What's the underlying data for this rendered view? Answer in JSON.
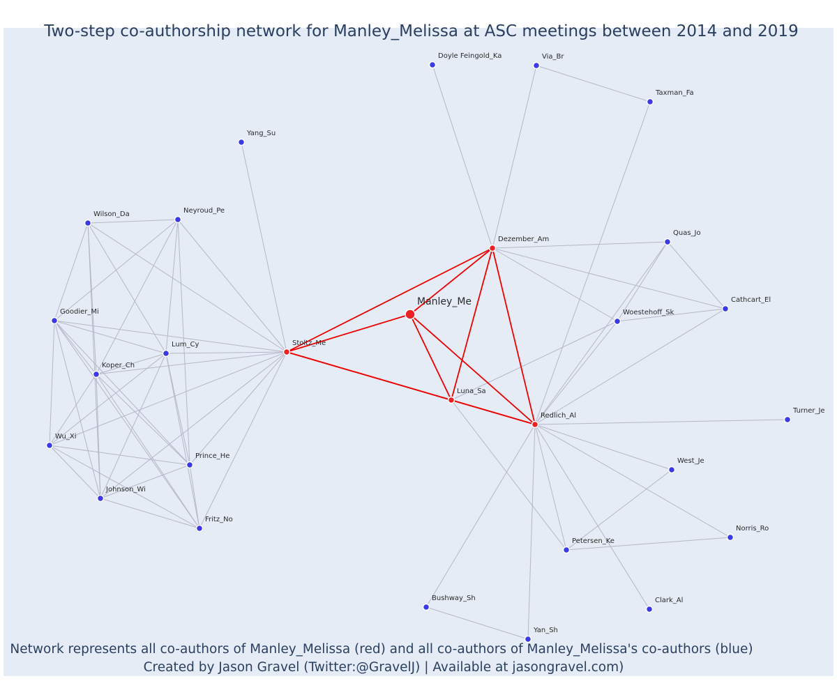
{
  "title": "Two-step co-authorship network for Manley_Melissa at ASC meetings between 2014 and 2019",
  "caption_line1": "Network represents all co-authors of Manley_Melissa (red) and all co-authors of Manley_Melissa's co-authors (blue)",
  "caption_line2": "Created by Jason Gravel (Twitter:@GravelJ) | Available at jasongravel.com)",
  "colors": {
    "background": "#e5ecf6",
    "text": "#2a3f5f",
    "red_node": "#ee2222",
    "blue_node": "#3a3ae6",
    "red_edge": "#ee0000",
    "grey_edge": "#b6b6c8"
  },
  "nodes": [
    {
      "id": "Manley_Me",
      "label": "Manley_Me",
      "group": "focal"
    },
    {
      "id": "Stoltz_Me",
      "label": "Stoltz_Me",
      "group": "red"
    },
    {
      "id": "Dezember_Am",
      "label": "Dezember_Am",
      "group": "red"
    },
    {
      "id": "Luna_Sa",
      "label": "Luna_Sa",
      "group": "red"
    },
    {
      "id": "Redlich_Al",
      "label": "Redlich_Al",
      "group": "red"
    },
    {
      "id": "Doyle Feingold_Ka",
      "label": "Doyle Feingold_Ka",
      "group": "blue"
    },
    {
      "id": "Via_Br",
      "label": "Via_Br",
      "group": "blue"
    },
    {
      "id": "Taxman_Fa",
      "label": "Taxman_Fa",
      "group": "blue"
    },
    {
      "id": "Yang_Su",
      "label": "Yang_Su",
      "group": "blue"
    },
    {
      "id": "Wilson_Da",
      "label": "Wilson_Da",
      "group": "blue"
    },
    {
      "id": "Neyroud_Pe",
      "label": "Neyroud_Pe",
      "group": "blue"
    },
    {
      "id": "Goodier_Mi",
      "label": "Goodier_Mi",
      "group": "blue"
    },
    {
      "id": "Lum_Cy",
      "label": "Lum_Cy",
      "group": "blue"
    },
    {
      "id": "Koper_Ch",
      "label": "Koper_Ch",
      "group": "blue"
    },
    {
      "id": "Wu_Xi",
      "label": "Wu_Xi",
      "group": "blue"
    },
    {
      "id": "Prince_He",
      "label": "Prince_He",
      "group": "blue"
    },
    {
      "id": "Johnson_Wi",
      "label": "Johnson_Wi",
      "group": "blue"
    },
    {
      "id": "Fritz_No",
      "label": "Fritz_No",
      "group": "blue"
    },
    {
      "id": "Quas_Jo",
      "label": "Quas_Jo",
      "group": "blue"
    },
    {
      "id": "Cathcart_El",
      "label": "Cathcart_El",
      "group": "blue"
    },
    {
      "id": "Woestehoff_Sk",
      "label": "Woestehoff_Sk",
      "group": "blue"
    },
    {
      "id": "Turner_Je",
      "label": "Turner_Je",
      "group": "blue"
    },
    {
      "id": "West_Je",
      "label": "West_Je",
      "group": "blue"
    },
    {
      "id": "Norris_Ro",
      "label": "Norris_Ro",
      "group": "blue"
    },
    {
      "id": "Petersen_Ke",
      "label": "Petersen_Ke",
      "group": "blue"
    },
    {
      "id": "Bushway_Sh",
      "label": "Bushway_Sh",
      "group": "blue"
    },
    {
      "id": "Yan_Sh",
      "label": "Yan_Sh",
      "group": "blue"
    },
    {
      "id": "Clark_Al",
      "label": "Clark_Al",
      "group": "blue"
    }
  ],
  "edges_red": [
    [
      "Manley_Me",
      "Stoltz_Me"
    ],
    [
      "Manley_Me",
      "Dezember_Am"
    ],
    [
      "Manley_Me",
      "Luna_Sa"
    ],
    [
      "Manley_Me",
      "Redlich_Al"
    ],
    [
      "Stoltz_Me",
      "Dezember_Am"
    ],
    [
      "Stoltz_Me",
      "Luna_Sa"
    ],
    [
      "Stoltz_Me",
      "Redlich_Al"
    ],
    [
      "Dezember_Am",
      "Luna_Sa"
    ],
    [
      "Dezember_Am",
      "Redlich_Al"
    ],
    [
      "Luna_Sa",
      "Redlich_Al"
    ]
  ],
  "edges_grey": [
    [
      "Yang_Su",
      "Stoltz_Me"
    ],
    [
      "Wilson_Da",
      "Stoltz_Me"
    ],
    [
      "Neyroud_Pe",
      "Stoltz_Me"
    ],
    [
      "Goodier_Mi",
      "Stoltz_Me"
    ],
    [
      "Lum_Cy",
      "Stoltz_Me"
    ],
    [
      "Koper_Ch",
      "Stoltz_Me"
    ],
    [
      "Wu_Xi",
      "Stoltz_Me"
    ],
    [
      "Prince_He",
      "Stoltz_Me"
    ],
    [
      "Johnson_Wi",
      "Stoltz_Me"
    ],
    [
      "Fritz_No",
      "Stoltz_Me"
    ],
    [
      "Wilson_Da",
      "Neyroud_Pe"
    ],
    [
      "Wilson_Da",
      "Goodier_Mi"
    ],
    [
      "Wilson_Da",
      "Lum_Cy"
    ],
    [
      "Wilson_Da",
      "Koper_Ch"
    ],
    [
      "Wilson_Da",
      "Johnson_Wi"
    ],
    [
      "Neyroud_Pe",
      "Goodier_Mi"
    ],
    [
      "Neyroud_Pe",
      "Lum_Cy"
    ],
    [
      "Neyroud_Pe",
      "Koper_Ch"
    ],
    [
      "Neyroud_Pe",
      "Prince_He"
    ],
    [
      "Goodier_Mi",
      "Lum_Cy"
    ],
    [
      "Goodier_Mi",
      "Koper_Ch"
    ],
    [
      "Goodier_Mi",
      "Wu_Xi"
    ],
    [
      "Goodier_Mi",
      "Prince_He"
    ],
    [
      "Goodier_Mi",
      "Johnson_Wi"
    ],
    [
      "Goodier_Mi",
      "Fritz_No"
    ],
    [
      "Lum_Cy",
      "Koper_Ch"
    ],
    [
      "Lum_Cy",
      "Wu_Xi"
    ],
    [
      "Lum_Cy",
      "Prince_He"
    ],
    [
      "Lum_Cy",
      "Johnson_Wi"
    ],
    [
      "Lum_Cy",
      "Fritz_No"
    ],
    [
      "Koper_Ch",
      "Wu_Xi"
    ],
    [
      "Koper_Ch",
      "Prince_He"
    ],
    [
      "Koper_Ch",
      "Johnson_Wi"
    ],
    [
      "Koper_Ch",
      "Fritz_No"
    ],
    [
      "Wu_Xi",
      "Prince_He"
    ],
    [
      "Wu_Xi",
      "Johnson_Wi"
    ],
    [
      "Wu_Xi",
      "Fritz_No"
    ],
    [
      "Prince_He",
      "Johnson_Wi"
    ],
    [
      "Prince_He",
      "Fritz_No"
    ],
    [
      "Johnson_Wi",
      "Fritz_No"
    ],
    [
      "Doyle Feingold_Ka",
      "Dezember_Am"
    ],
    [
      "Via_Br",
      "Dezember_Am"
    ],
    [
      "Via_Br",
      "Taxman_Fa"
    ],
    [
      "Taxman_Fa",
      "Redlich_Al"
    ],
    [
      "Dezember_Am",
      "Quas_Jo"
    ],
    [
      "Dezember_Am",
      "Cathcart_El"
    ],
    [
      "Dezember_Am",
      "Woestehoff_Sk"
    ],
    [
      "Quas_Jo",
      "Cathcart_El"
    ],
    [
      "Quas_Jo",
      "Woestehoff_Sk"
    ],
    [
      "Quas_Jo",
      "Redlich_Al"
    ],
    [
      "Woestehoff_Sk",
      "Cathcart_El"
    ],
    [
      "Woestehoff_Sk",
      "Redlich_Al"
    ],
    [
      "Woestehoff_Sk",
      "Luna_Sa"
    ],
    [
      "Cathcart_El",
      "Redlich_Al"
    ],
    [
      "Redlich_Al",
      "Turner_Je"
    ],
    [
      "Redlich_Al",
      "West_Je"
    ],
    [
      "Redlich_Al",
      "Norris_Ro"
    ],
    [
      "Redlich_Al",
      "Petersen_Ke"
    ],
    [
      "Redlich_Al",
      "Bushway_Sh"
    ],
    [
      "Redlich_Al",
      "Yan_Sh"
    ],
    [
      "Redlich_Al",
      "Clark_Al"
    ],
    [
      "West_Je",
      "Petersen_Ke"
    ],
    [
      "Norris_Ro",
      "Petersen_Ke"
    ],
    [
      "Luna_Sa",
      "Petersen_Ke"
    ],
    [
      "Bushway_Sh",
      "Yan_Sh"
    ]
  ]
}
